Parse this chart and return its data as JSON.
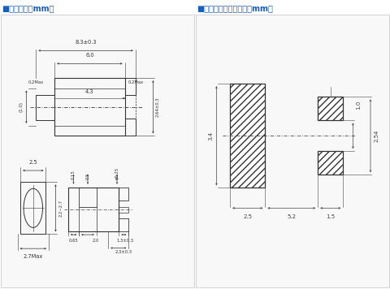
{
  "title_left": "■外形尺法［mm］",
  "title_right": "■推奮ランドパターン［mm］",
  "title_color": "#1a5fb4",
  "bg_color": "#ffffff",
  "line_color": "#333333",
  "border_color": "#aaaaaa",
  "panel_bg": "#f5f5f5"
}
